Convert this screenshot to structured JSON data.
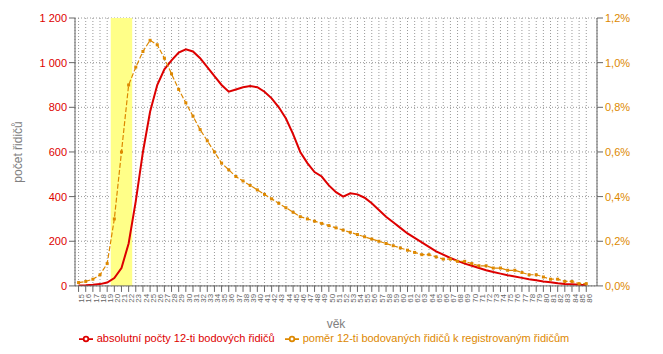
{
  "chart_data": {
    "type": "line",
    "xlabel": "věk",
    "ylabel": "počet řidičů",
    "x": [
      15,
      16,
      17,
      18,
      19,
      20,
      21,
      22,
      23,
      24,
      25,
      26,
      27,
      28,
      29,
      30,
      31,
      32,
      33,
      34,
      35,
      36,
      37,
      38,
      39,
      40,
      41,
      42,
      43,
      44,
      45,
      46,
      47,
      48,
      49,
      50,
      51,
      52,
      53,
      54,
      55,
      56,
      57,
      58,
      59,
      60,
      61,
      62,
      63,
      64,
      65,
      66,
      67,
      68,
      69,
      70,
      71,
      72,
      73,
      74,
      75,
      76,
      77,
      78,
      79,
      80,
      81,
      82,
      83,
      84,
      85,
      86
    ],
    "xlim": [
      14.5,
      87.5
    ],
    "xticks": [
      15,
      16,
      17,
      18,
      19,
      20,
      21,
      22,
      23,
      24,
      25,
      26,
      27,
      28,
      29,
      30,
      31,
      32,
      33,
      34,
      35,
      36,
      37,
      38,
      39,
      40,
      41,
      42,
      43,
      44,
      45,
      46,
      47,
      48,
      49,
      50,
      51,
      52,
      53,
      54,
      55,
      56,
      57,
      58,
      59,
      60,
      61,
      62,
      63,
      64,
      65,
      66,
      67,
      68,
      69,
      70,
      71,
      72,
      73,
      74,
      75,
      76,
      77,
      78,
      79,
      80,
      81,
      82,
      83,
      84,
      85,
      86
    ],
    "ylim": [
      0,
      1200
    ],
    "yticks": [
      0,
      200,
      400,
      600,
      800,
      {
        "value": 1000,
        "label": "1 000"
      },
      {
        "value": 1200,
        "label": "1 200"
      }
    ],
    "y2lim": [
      0,
      0.012
    ],
    "y2ticks": [
      {
        "value": 0.0,
        "label": "0,0%"
      },
      {
        "value": 0.002,
        "label": "0,2%"
      },
      {
        "value": 0.004,
        "label": "0,4%"
      },
      {
        "value": 0.006,
        "label": "0,6%"
      },
      {
        "value": 0.008,
        "label": "0,8%"
      },
      {
        "value": 0.01,
        "label": "1,0%"
      },
      {
        "value": 0.012,
        "label": "1,2%"
      }
    ],
    "bands": [
      {
        "x": [
          19.5,
          22.5
        ],
        "color": "#ffff88"
      }
    ],
    "grid": true,
    "legend": "bottom",
    "series": [
      {
        "name": "absolutní počty 12-ti bodových řidičů",
        "color": "#dd0000",
        "line_style": "solid",
        "values": [
          2,
          3,
          5,
          8,
          15,
          35,
          80,
          190,
          380,
          600,
          780,
          900,
          970,
          1010,
          1045,
          1060,
          1050,
          1020,
          980,
          940,
          900,
          870,
          880,
          890,
          895,
          890,
          870,
          840,
          800,
          750,
          680,
          600,
          550,
          510,
          490,
          450,
          420,
          400,
          415,
          410,
          395,
          370,
          340,
          310,
          285,
          260,
          235,
          215,
          195,
          175,
          155,
          140,
          125,
          112,
          100,
          90,
          80,
          70,
          62,
          55,
          48,
          42,
          36,
          30,
          25,
          20,
          16,
          12,
          9,
          7,
          5,
          3
        ]
      },
      {
        "name": "poměr 12-ti bodovaných řidičů k registrovaným řidičům",
        "color": "#dd8800",
        "line_style": "dashed",
        "marker": "square",
        "axis": "y2",
        "values": [
          0.00015,
          0.0002,
          0.0003,
          0.0005,
          0.001,
          0.003,
          0.006,
          0.009,
          0.0098,
          0.0105,
          0.011,
          0.0108,
          0.0102,
          0.0095,
          0.0088,
          0.0082,
          0.0076,
          0.007,
          0.0065,
          0.006,
          0.0055,
          0.0052,
          0.0049,
          0.0047,
          0.0045,
          0.0043,
          0.0041,
          0.0039,
          0.0037,
          0.0035,
          0.0033,
          0.0031,
          0.003,
          0.0029,
          0.0028,
          0.0027,
          0.0026,
          0.0025,
          0.0024,
          0.0023,
          0.0022,
          0.0021,
          0.002,
          0.0019,
          0.0018,
          0.0017,
          0.0016,
          0.0015,
          0.0014,
          0.0014,
          0.0013,
          0.0012,
          0.0012,
          0.0011,
          0.0011,
          0.001,
          0.0009,
          0.0009,
          0.0008,
          0.0008,
          0.0007,
          0.0007,
          0.0006,
          0.0005,
          0.0005,
          0.0004,
          0.0003,
          0.0003,
          0.0002,
          0.0002,
          0.0001,
          0.0001
        ]
      }
    ]
  }
}
